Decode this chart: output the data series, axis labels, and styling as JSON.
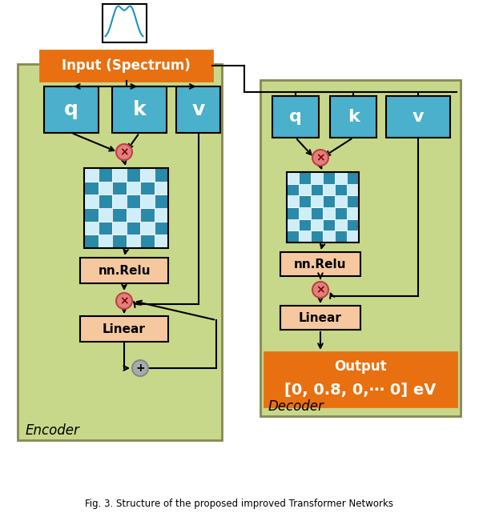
{
  "bg_color": "#ffffff",
  "green_bg": "#c8d88a",
  "orange_color": "#e87010",
  "blue_box": "#4ab0cc",
  "salmon_box": "#f5c8a0",
  "title_text": "Fig. 3. Structure of the proposed improved Transformer Networks",
  "encoder_label": "Encoder",
  "decoder_label": "Decoder",
  "input_label": "Input (Spectrum)",
  "output_label": "Output\n[0, 0.8, 0,⋯ 0] eV",
  "relu_label": "nn.Relu",
  "linear_label": "Linear",
  "q_label": "q",
  "k_label": "k",
  "v_label": "v",
  "grid_color_dark": "#2a8aaa",
  "grid_color_light": "#d0eef8"
}
